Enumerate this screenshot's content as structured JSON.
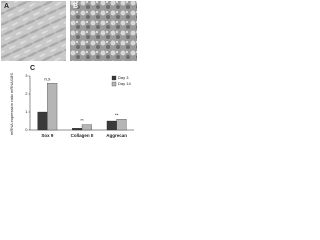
{
  "panel_labels": [
    "A",
    "B",
    "C"
  ],
  "chart_data": {
    "type": "bar",
    "y_label": "mRNA expression ratio mRNA/18S",
    "categories": [
      "Sox 9",
      "Collagen II",
      "Aggrecan"
    ],
    "series": [
      {
        "name": "Day 3",
        "color": "#3a3a3a",
        "values": [
          1.0,
          0.1,
          0.5
        ]
      },
      {
        "name": "Day 14",
        "color": "#b5b5b5",
        "values": [
          2.6,
          0.3,
          0.6
        ]
      }
    ],
    "significance": [
      "n.s",
      "**",
      "**"
    ],
    "ylim": [
      0,
      3
    ],
    "yticks": [
      0,
      1,
      2,
      3
    ],
    "legend": "upper-right"
  }
}
